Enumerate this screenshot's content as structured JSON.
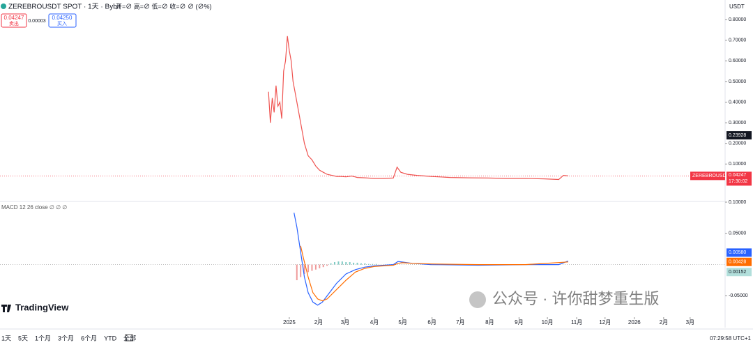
{
  "header": {
    "sell_price": "0.04247",
    "sell_label": "卖出",
    "spread": "0.00003",
    "buy_price": "0.04250",
    "buy_label": "买入",
    "currency": "USDT"
  },
  "chart_data": [
    {
      "type": "line",
      "title": "ZEREBROUSDT SPOT · 1天 · Bybit",
      "subtitle": "开=∅ 高=∅ 低=∅ 收=∅ ∅ (∅%)",
      "xlim": [
        -306,
        461
      ],
      "ylim": [
        -0.078,
        0.895
      ],
      "yticks": [
        {
          "value": 0.8,
          "label": "0.80000"
        },
        {
          "value": 0.7,
          "label": "0.70000"
        },
        {
          "value": 0.6,
          "label": "0.60000"
        },
        {
          "value": 0.5,
          "label": "0.50000"
        },
        {
          "value": 0.4,
          "label": "0.40000"
        },
        {
          "value": 0.3,
          "label": "0.30000"
        },
        {
          "value": 0.2,
          "label": "0.20000"
        },
        {
          "value": 0.1,
          "label": "0.10000"
        }
      ],
      "series": [
        {
          "name": "ZEREBROUSDT",
          "color": "#ef5350",
          "x": [
            -22,
            -20,
            -18,
            -16,
            -14,
            -12,
            -10,
            -8,
            -6,
            -4,
            -2,
            0,
            2,
            4,
            6,
            8,
            10,
            12,
            14,
            16,
            18,
            20,
            24,
            28,
            32,
            36,
            40,
            45,
            50,
            55,
            60,
            66,
            72,
            80,
            90,
            100,
            110,
            114,
            118,
            125,
            135,
            150,
            170,
            190,
            210,
            230,
            250,
            270,
            285,
            290,
            295
          ],
          "values": [
            0.45,
            0.3,
            0.42,
            0.35,
            0.48,
            0.38,
            0.4,
            0.32,
            0.55,
            0.6,
            0.72,
            0.65,
            0.6,
            0.5,
            0.45,
            0.4,
            0.35,
            0.3,
            0.25,
            0.2,
            0.17,
            0.14,
            0.12,
            0.09,
            0.07,
            0.06,
            0.05,
            0.045,
            0.04,
            0.04,
            0.038,
            0.042,
            0.035,
            0.033,
            0.03,
            0.03,
            0.032,
            0.085,
            0.06,
            0.05,
            0.045,
            0.04,
            0.035,
            0.033,
            0.032,
            0.03,
            0.03,
            0.028,
            0.025,
            0.045,
            0.04247
          ]
        }
      ],
      "high_marker": {
        "value": 0.23928,
        "label": "0.23928"
      },
      "last_price": {
        "value": 0.04247,
        "label": "0.04247",
        "countdown": "17:30:02",
        "color": "#f23645"
      }
    },
    {
      "type": "macd",
      "title": "MACD 12 26 close ∅ ∅ ∅",
      "xlim": [
        -306,
        461
      ],
      "ylim": [
        -0.073,
        0.1
      ],
      "yticks": [
        {
          "value": 0.1,
          "label": "0.10000"
        },
        {
          "value": 0.05,
          "label": "0.05000"
        },
        {
          "value": -0.05,
          "label": "-0.05000"
        }
      ],
      "xticks": [
        {
          "value": 0,
          "label": "2025"
        },
        {
          "value": 31,
          "label": "2月"
        },
        {
          "value": 59,
          "label": "3月"
        },
        {
          "value": 90,
          "label": "4月"
        },
        {
          "value": 120,
          "label": "5月"
        },
        {
          "value": 151,
          "label": "6月"
        },
        {
          "value": 181,
          "label": "7月"
        },
        {
          "value": 212,
          "label": "8月"
        },
        {
          "value": 243,
          "label": "9月"
        },
        {
          "value": 273,
          "label": "10月"
        },
        {
          "value": 304,
          "label": "11月"
        },
        {
          "value": 334,
          "label": "12月"
        },
        {
          "value": 365,
          "label": "2026"
        },
        {
          "value": 396,
          "label": "2月"
        },
        {
          "value": 424,
          "label": "3月"
        }
      ],
      "series": [
        {
          "color": "#2962ff",
          "x": [
            5,
            8,
            12,
            16,
            20,
            25,
            30,
            35,
            40,
            50,
            60,
            70,
            80,
            90,
            100,
            110,
            115,
            120,
            130,
            150,
            200,
            250,
            285,
            295
          ],
          "values": [
            0.083,
            0.06,
            0.02,
            -0.02,
            -0.045,
            -0.06,
            -0.065,
            -0.06,
            -0.05,
            -0.03,
            -0.015,
            -0.008,
            -0.004,
            -0.002,
            -0.001,
            0,
            0.005,
            0.004,
            0.002,
            0,
            -0.001,
            0,
            0,
            0.0058
          ]
        },
        {
          "color": "#ff6d00",
          "x": [
            12,
            15,
            20,
            25,
            30,
            35,
            40,
            50,
            60,
            70,
            80,
            90,
            100,
            110,
            115,
            120,
            130,
            150,
            200,
            250,
            295
          ],
          "values": [
            0.03,
            0.01,
            -0.02,
            -0.045,
            -0.055,
            -0.058,
            -0.055,
            -0.04,
            -0.025,
            -0.012,
            -0.006,
            -0.003,
            -0.002,
            -0.001,
            0.002,
            0.003,
            0.002,
            0.001,
            0,
            0,
            0.00428
          ]
        }
      ],
      "histogram": {
        "color": "#80cbc4",
        "negative_color": "#ef9a9a",
        "x": [
          8,
          12,
          16,
          20,
          24,
          28,
          32,
          36,
          40,
          44,
          48,
          52,
          56,
          60,
          64,
          68,
          72,
          76,
          80,
          84,
          88,
          92
        ],
        "values": [
          -0.025,
          -0.02,
          -0.015,
          -0.012,
          -0.01,
          -0.008,
          -0.006,
          -0.004,
          -0.002,
          0.002,
          0.004,
          0.005,
          0.005,
          0.004,
          0.004,
          0.003,
          0.003,
          0.002,
          0.002,
          0.001,
          0.001,
          0.001
        ]
      },
      "last_values": [
        {
          "value": 0.0058,
          "label": "0.00580",
          "color": "#2962ff"
        },
        {
          "value": 0.00428,
          "label": "0.00428",
          "color": "#ff6d00"
        },
        {
          "value": 0.00152,
          "label": "0.00152",
          "color": "#b2dfdb"
        }
      ]
    }
  ],
  "footer": {
    "logo": "TradingView",
    "watermark": "公众号 · 许你甜梦重生版",
    "ranges": [
      "1天",
      "5天",
      "1个月",
      "3个月",
      "6个月",
      "YTD",
      "全部"
    ],
    "time": "07:29:58 UTC+1"
  }
}
